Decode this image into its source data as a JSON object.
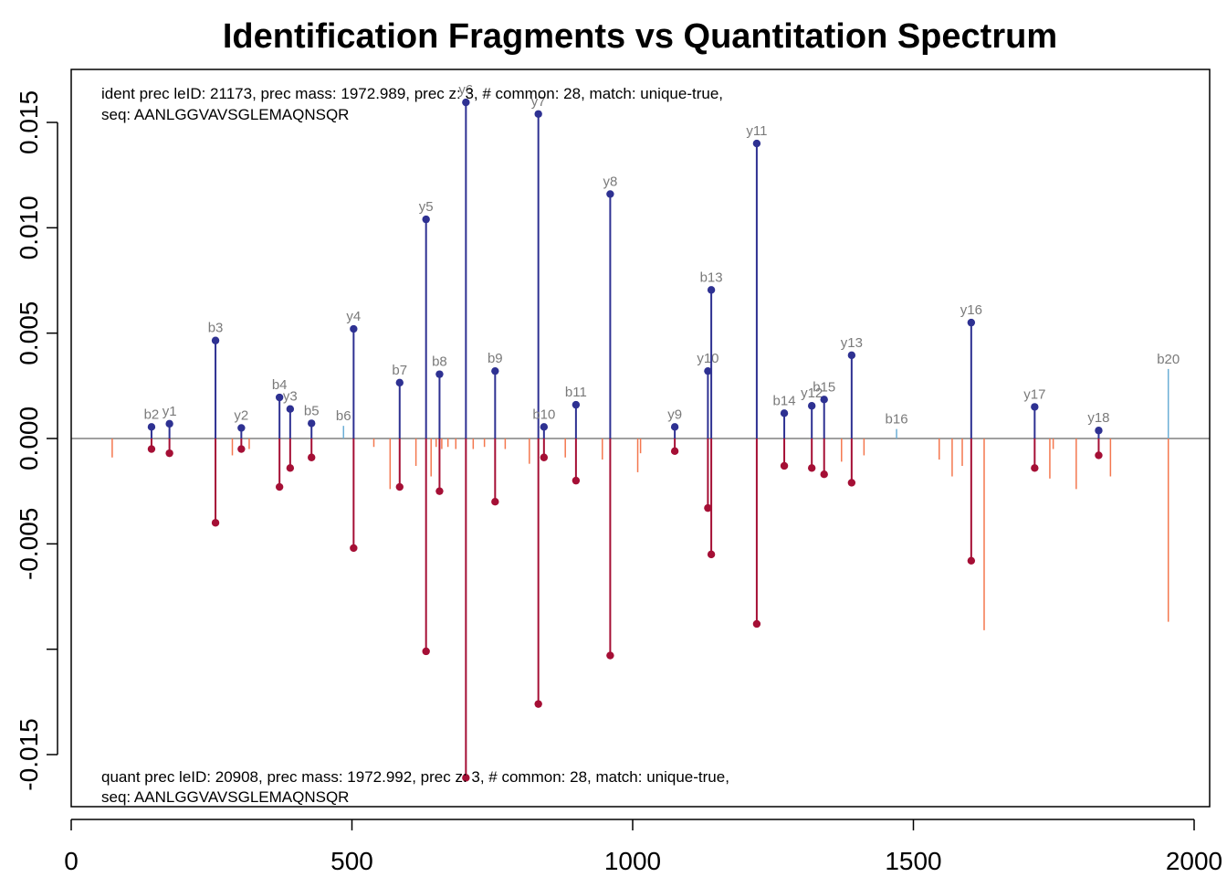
{
  "chart_data": {
    "type": "lollipop",
    "title": "Identification Fragments vs Quantitation Spectrum",
    "xlim": [
      0,
      2000
    ],
    "ylim": [
      -0.017,
      0.0175
    ],
    "x_ticks": [
      0,
      500,
      1000,
      1500,
      2000
    ],
    "y_ticks": [
      0.015,
      0.01,
      0.005,
      0.0,
      -0.005,
      -0.01,
      -0.015
    ],
    "y_tick_labels": [
      "0.015",
      "0.010",
      "0.005",
      "0.000",
      "-0.005",
      "",
      "-0.015"
    ],
    "ident_annotation": [
      "ident prec leID: 21173, prec mass: 1972.989, prec z: 3, # common: 28, match: unique-true,",
      "seq: AANLGGVAVSGLEMAQNSQR"
    ],
    "quant_annotation": [
      "quant prec leID: 20908, prec mass: 1972.992, prec z: 3, # common: 28, match: unique-true,",
      "seq: AANLGGVAVSGLEMAQNSQR"
    ],
    "colors": {
      "ident_matched": "#2e3192",
      "quant_matched": "#a50f35",
      "ident_unmatched": "#6baed6",
      "quant_unmatched": "#f4774e",
      "baseline": "#808080"
    },
    "matched_fragments": [
      {
        "label": "b2",
        "mz": 143,
        "ident": 0.00055,
        "quant": -0.0005
      },
      {
        "label": "y1",
        "mz": 175,
        "ident": 0.0007,
        "quant": -0.0007
      },
      {
        "label": "b3",
        "mz": 257,
        "ident": 0.00465,
        "quant": -0.004
      },
      {
        "label": "y2",
        "mz": 303,
        "ident": 0.0005,
        "quant": -0.0005
      },
      {
        "label": "b4",
        "mz": 371,
        "ident": 0.00195,
        "quant": -0.0023
      },
      {
        "label": "y3",
        "mz": 390,
        "ident": 0.0014,
        "quant": -0.0014
      },
      {
        "label": "b5",
        "mz": 428,
        "ident": 0.00072,
        "quant": -0.0009
      },
      {
        "label": "y4",
        "mz": 503,
        "ident": 0.0052,
        "quant": -0.0052
      },
      {
        "label": "b7",
        "mz": 585,
        "ident": 0.00265,
        "quant": -0.0023
      },
      {
        "label": "y5",
        "mz": 632,
        "ident": 0.0104,
        "quant": -0.0101
      },
      {
        "label": "b8",
        "mz": 656,
        "ident": 0.00305,
        "quant": -0.0025
      },
      {
        "label": "y6",
        "mz": 703,
        "ident": 0.01595,
        "quant": -0.0161
      },
      {
        "label": "b9",
        "mz": 755,
        "ident": 0.0032,
        "quant": -0.003
      },
      {
        "label": "y7",
        "mz": 832,
        "ident": 0.0154,
        "quant": -0.0126
      },
      {
        "label": "b10",
        "mz": 842,
        "ident": 0.00055,
        "quant": -0.0009
      },
      {
        "label": "b11",
        "mz": 899,
        "ident": 0.0016,
        "quant": -0.002
      },
      {
        "label": "y8",
        "mz": 960,
        "ident": 0.0116,
        "quant": -0.0103
      },
      {
        "label": "y9",
        "mz": 1075,
        "ident": 0.00055,
        "quant": -0.0006
      },
      {
        "label": "y10",
        "mz": 1134,
        "ident": 0.0032,
        "quant": -0.0033
      },
      {
        "label": "b13",
        "mz": 1140,
        "ident": 0.00705,
        "quant": -0.0055
      },
      {
        "label": "y11",
        "mz": 1221,
        "ident": 0.014,
        "quant": -0.0088
      },
      {
        "label": "b14",
        "mz": 1270,
        "ident": 0.0012,
        "quant": -0.0013
      },
      {
        "label": "y12",
        "mz": 1319,
        "ident": 0.00155,
        "quant": -0.0014
      },
      {
        "label": "b15",
        "mz": 1341,
        "ident": 0.00185,
        "quant": -0.0017
      },
      {
        "label": "y13",
        "mz": 1390,
        "ident": 0.00395,
        "quant": -0.0021
      },
      {
        "label": "y16",
        "mz": 1603,
        "ident": 0.0055,
        "quant": -0.0058
      },
      {
        "label": "y17",
        "mz": 1716,
        "ident": 0.0015,
        "quant": -0.0014
      },
      {
        "label": "y18",
        "mz": 1830,
        "ident": 0.00038,
        "quant": -0.0008
      }
    ],
    "unmatched_ident": [
      {
        "label": "b6",
        "mz": 485,
        "value": 0.0006
      },
      {
        "label": "b16",
        "mz": 1470,
        "value": 0.00045
      },
      {
        "label": "b20",
        "mz": 1954,
        "value": 0.0033
      }
    ],
    "unmatched_quant": [
      {
        "mz": 73,
        "value": -0.0009
      },
      {
        "mz": 287,
        "value": -0.0008
      },
      {
        "mz": 317,
        "value": -0.0005
      },
      {
        "mz": 539,
        "value": -0.0004
      },
      {
        "mz": 568,
        "value": -0.0024
      },
      {
        "mz": 614,
        "value": -0.0013
      },
      {
        "mz": 641,
        "value": -0.0018
      },
      {
        "mz": 650,
        "value": -0.0004
      },
      {
        "mz": 660,
        "value": -0.0005
      },
      {
        "mz": 671,
        "value": -0.0004
      },
      {
        "mz": 685,
        "value": -0.0005
      },
      {
        "mz": 716,
        "value": -0.0005
      },
      {
        "mz": 736,
        "value": -0.0004
      },
      {
        "mz": 773,
        "value": -0.0005
      },
      {
        "mz": 816,
        "value": -0.0012
      },
      {
        "mz": 880,
        "value": -0.0009
      },
      {
        "mz": 946,
        "value": -0.001
      },
      {
        "mz": 1009,
        "value": -0.0016
      },
      {
        "mz": 1014,
        "value": -0.0007
      },
      {
        "mz": 1372,
        "value": -0.0011
      },
      {
        "mz": 1412,
        "value": -0.0008
      },
      {
        "mz": 1546,
        "value": -0.001
      },
      {
        "mz": 1569,
        "value": -0.0018
      },
      {
        "mz": 1587,
        "value": -0.0013
      },
      {
        "mz": 1626,
        "value": -0.0091
      },
      {
        "mz": 1743,
        "value": -0.0019
      },
      {
        "mz": 1749,
        "value": -0.0005
      },
      {
        "mz": 1790,
        "value": -0.0024
      },
      {
        "mz": 1851,
        "value": -0.0018
      },
      {
        "mz": 1954,
        "value": -0.0087
      }
    ]
  }
}
